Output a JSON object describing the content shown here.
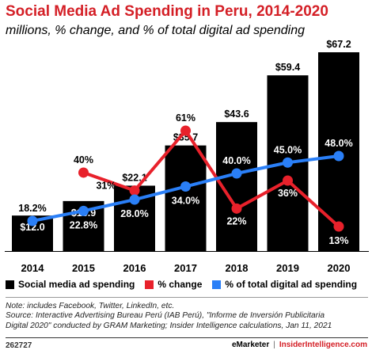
{
  "title": "Social Media Ad Spending in Peru, 2014-2020",
  "subtitle": "millions, % change, and % of total digital ad spending",
  "colors": {
    "bar": "#000000",
    "change": "#e8212b",
    "share": "#2a7ff7",
    "title": "#d41f26"
  },
  "chart_data": {
    "type": "bar",
    "categories": [
      "2014",
      "2015",
      "2016",
      "2017",
      "2018",
      "2019",
      "2020"
    ],
    "series": [
      {
        "name": "Social media ad spending",
        "type": "bar",
        "values": [
          12.0,
          16.9,
          22.1,
          35.7,
          43.6,
          59.4,
          67.2
        ],
        "labels": [
          "$12.0",
          "$16.9",
          "$22.1",
          "$35.7",
          "$43.6",
          "$59.4",
          "$67.2"
        ]
      },
      {
        "name": "% change",
        "type": "line",
        "values": [
          null,
          40,
          31,
          61,
          22,
          36,
          13
        ],
        "labels": [
          "",
          "40%",
          "31%",
          "61%",
          "22%",
          "36%",
          "13%"
        ]
      },
      {
        "name": "% of total digital ad spending",
        "type": "line",
        "values": [
          18.2,
          22.8,
          28.0,
          34.0,
          40.0,
          45.0,
          48.0
        ],
        "labels": [
          "18.2%",
          "22.8%",
          "28.0%",
          "34.0%",
          "40.0%",
          "45.0%",
          "48.0%"
        ]
      }
    ]
  },
  "legend": [
    {
      "label": "Social media ad spending",
      "color": "#000000"
    },
    {
      "label": "% change",
      "color": "#e8212b"
    },
    {
      "label": "% of total digital ad spending",
      "color": "#2a7ff7"
    }
  ],
  "notes": {
    "line1": "Note: includes Facebook, Twitter, LinkedIn, etc.",
    "line2": "Source: Interactive Advertising Bureau Perú (IAB Perú), \"Informe de Inversión Publicitaria",
    "line3": "Digital 2020\" conducted by GRAM Marketing; Insider Intelligence calculations, Jan 11, 2021"
  },
  "footer": {
    "id": "262727",
    "brand1": "eMarketer",
    "separator": "|",
    "brand2": "InsiderIntelligence.com"
  }
}
